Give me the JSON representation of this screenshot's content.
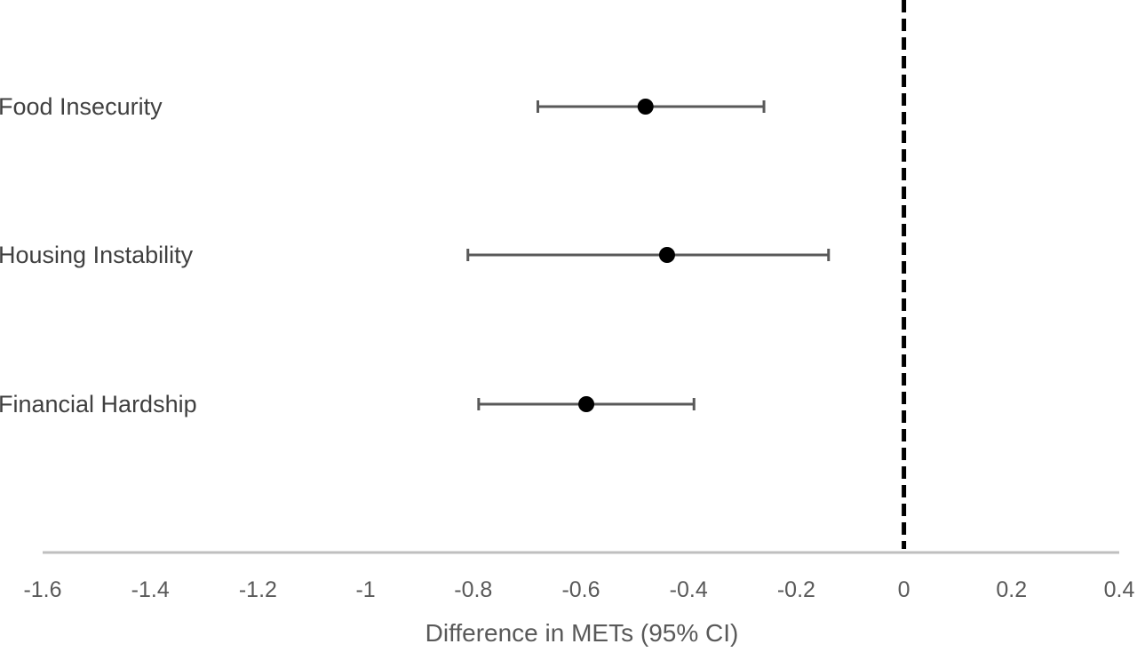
{
  "chart_data": {
    "type": "forest",
    "xlabel": "Difference in METs (95% CI)",
    "xlim": [
      -1.6,
      0.4
    ],
    "xticks": [
      "-1.6",
      "-1.4",
      "-1.2",
      "-1",
      "-0.8",
      "-0.6",
      "-0.4",
      "-0.2",
      "0",
      "0.2",
      "0.4"
    ],
    "reference_line": {
      "x": 0,
      "style": "dashed"
    },
    "grid": false,
    "legend": "none",
    "rows": [
      {
        "label": "Food Insecurity",
        "estimate": -0.48,
        "ci_low": -0.68,
        "ci_high": -0.26
      },
      {
        "label": "Housing Instability",
        "estimate": -0.44,
        "ci_low": -0.81,
        "ci_high": -0.14
      },
      {
        "label": "Financial Hardship",
        "estimate": -0.59,
        "ci_low": -0.79,
        "ci_high": -0.39
      }
    ]
  },
  "colors": {
    "axis": "#bfbfbf",
    "errorbar": "#595959",
    "point": "#000000",
    "reference": "#000000",
    "label_text": "#404040",
    "tick_text": "#595959"
  }
}
